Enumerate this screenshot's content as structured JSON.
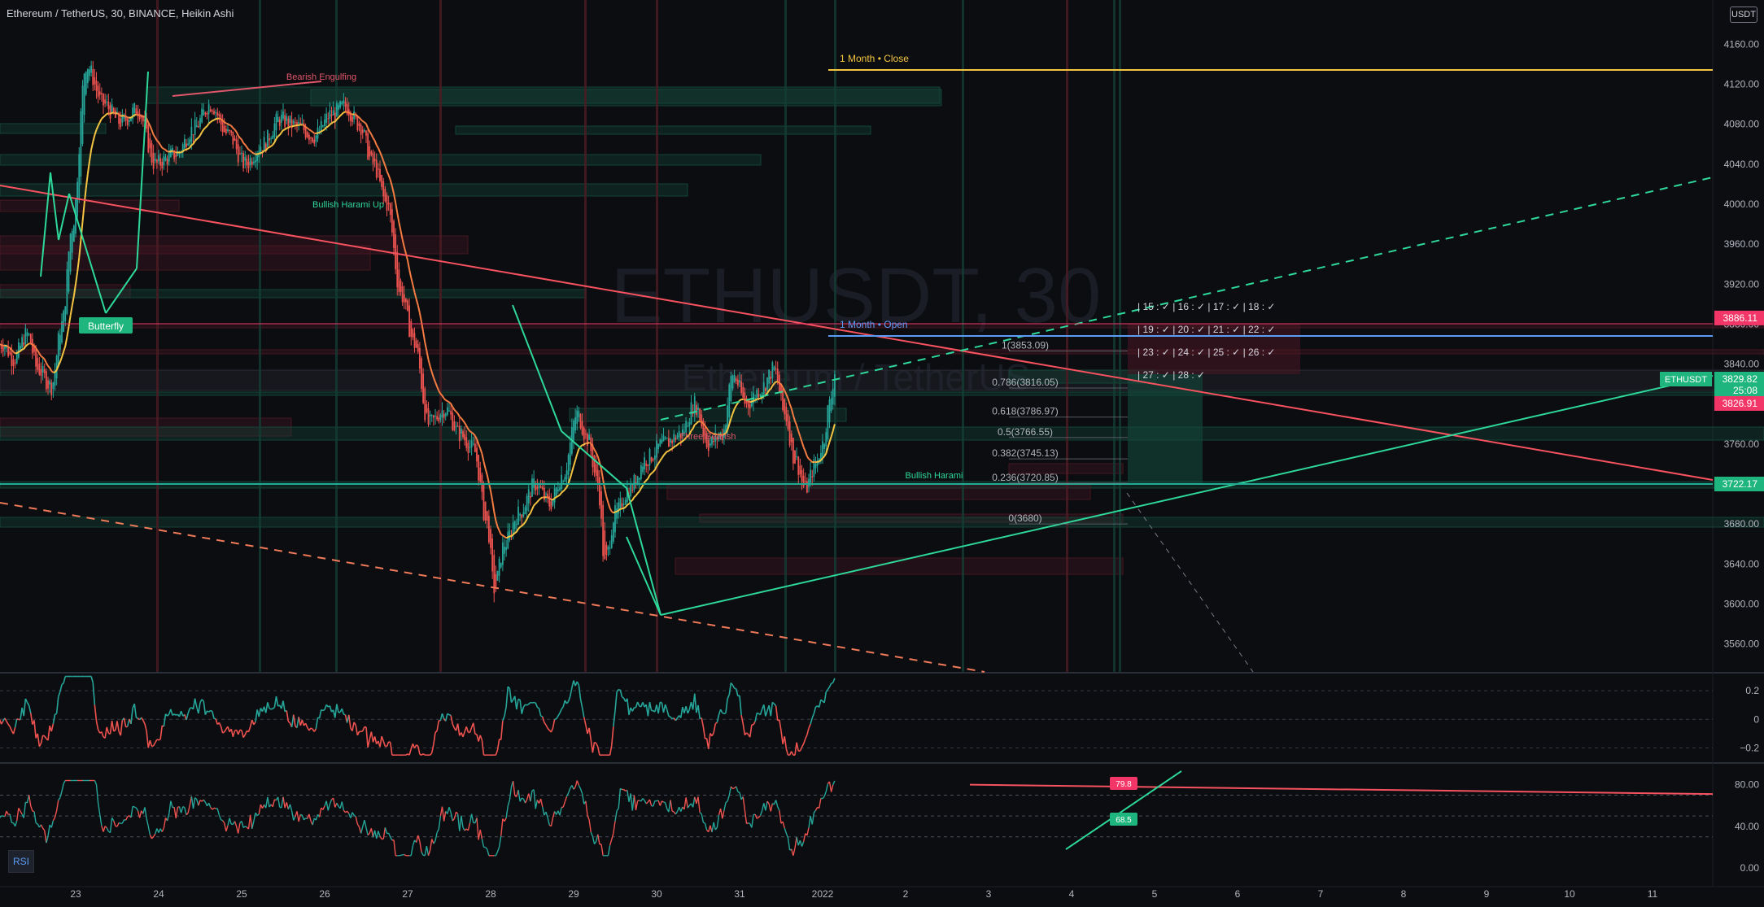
{
  "header": {
    "title": "Ethereum / TetherUS, 30, BINANCE, Heikin Ashi",
    "currency_badge": "USDT"
  },
  "watermark": {
    "symbol": "ETHUSDT, 30",
    "name": "Ethereum / TetherUS"
  },
  "annotations": {
    "month_close": "1 Month • Close",
    "month_open": "1 Month • Open",
    "butterfly": "Butterfly",
    "bearish_engulfing": "Bearish Engulfing",
    "bullish_harami_up": "Bullish Harami Up",
    "bullish_harami": "Bullish Harami",
    "three_white": "Three Bearish"
  },
  "fib_levels": [
    {
      "label": "1(3853.09)",
      "price": 3853.09
    },
    {
      "label": "0.786(3816.05)",
      "price": 3816.05
    },
    {
      "label": "0.618(3786.97)",
      "price": 3786.97
    },
    {
      "label": "0.5(3766.55)",
      "price": 3766.55
    },
    {
      "label": "0.382(3745.13)",
      "price": 3745.13
    },
    {
      "label": "0.236(3720.85)",
      "price": 3720.85
    },
    {
      "label": "0(3680)",
      "price": 3680
    }
  ],
  "grid_labels": {
    "row1": "| 15 : ✓ | 16 : ✓ | 17 : ✓ | 18 : ✓",
    "row2": "| 19 : ✓ | 20 : ✓ | 21 : ✓ | 22 : ✓",
    "row3": "| 23 : ✓ | 24 : ✓ | 25 : ✓ | 26 : ✓",
    "row4": "| 27 : ✓ | 28 : ✓"
  },
  "price_tags": {
    "high_tag": "3886.11",
    "current_price": "3829.82",
    "countdown": "25:08",
    "symbol_tag": "ETHUSDT",
    "pink_tag": "3826.91",
    "green_tag": "3722.17"
  },
  "rsi_badges": {
    "top": "79.8",
    "bottom": "68.5"
  },
  "buttons": {
    "rsi": "RSI"
  },
  "colors": {
    "background": "#0c0d10",
    "bull": "#26a69a",
    "bear": "#ef5350",
    "ma_yellow": "#f5c542",
    "trend_red": "#f7525f",
    "trend_green": "#2ed89a",
    "month_close": "#f5c542",
    "month_open": "#5b9cf6",
    "pink_tag": "#f23668",
    "green_tag": "#22ab94"
  },
  "chart_data": [
    {
      "type": "candlestick",
      "style": "Heikin Ashi",
      "interval": "30",
      "y_axis": {
        "ticks": [
          4160.0,
          4120.0,
          4080.0,
          4040.0,
          4000.0,
          3960.0,
          3920.0,
          3880.0,
          3840.0,
          3800.0,
          3760.0,
          3720.0,
          3680.0,
          3640.0,
          3600.0,
          3560.0
        ],
        "tick_labels": [
          "4160.00",
          "4120.00",
          "4080.00",
          "4040.00",
          "4000.00",
          "3960.00",
          "3920.00",
          "3880.00",
          "3840.00",
          "3800.00",
          "3760.00",
          "3720.00",
          "3680.00",
          "3640.00",
          "3600.00",
          "3560.00"
        ],
        "range": [
          3532,
          4188
        ]
      },
      "x_axis": {
        "labels": [
          "23",
          "24",
          "25",
          "26",
          "27",
          "28",
          "29",
          "30",
          "31",
          "2022",
          "2",
          "3",
          "4",
          "5",
          "6",
          "7",
          "8",
          "9",
          "10",
          "11"
        ],
        "label_index": [
          0,
          48,
          96,
          144,
          192,
          240,
          288,
          336,
          384,
          432,
          480,
          528,
          576,
          624,
          672,
          720,
          768,
          816,
          864,
          912
        ]
      },
      "anchors": [
        {
          "i": -42,
          "p": 3860
        },
        {
          "i": -36,
          "p": 3845
        },
        {
          "i": -28,
          "p": 3870
        },
        {
          "i": -22,
          "p": 3835
        },
        {
          "i": -14,
          "p": 3818
        },
        {
          "i": -8,
          "p": 3880
        },
        {
          "i": -2,
          "p": 3978
        },
        {
          "i": 6,
          "p": 4140
        },
        {
          "i": 16,
          "p": 4100
        },
        {
          "i": 26,
          "p": 4082
        },
        {
          "i": 36,
          "p": 4095
        },
        {
          "i": 46,
          "p": 4040
        },
        {
          "i": 58,
          "p": 4050
        },
        {
          "i": 68,
          "p": 4075
        },
        {
          "i": 78,
          "p": 4100
        },
        {
          "i": 88,
          "p": 4070
        },
        {
          "i": 98,
          "p": 4040
        },
        {
          "i": 108,
          "p": 4060
        },
        {
          "i": 118,
          "p": 4085
        },
        {
          "i": 128,
          "p": 4078
        },
        {
          "i": 138,
          "p": 4068
        },
        {
          "i": 148,
          "p": 4090
        },
        {
          "i": 156,
          "p": 4098
        },
        {
          "i": 164,
          "p": 4080
        },
        {
          "i": 172,
          "p": 4040
        },
        {
          "i": 180,
          "p": 4000
        },
        {
          "i": 188,
          "p": 3910
        },
        {
          "i": 196,
          "p": 3860
        },
        {
          "i": 204,
          "p": 3780
        },
        {
          "i": 214,
          "p": 3795
        },
        {
          "i": 222,
          "p": 3770
        },
        {
          "i": 230,
          "p": 3755
        },
        {
          "i": 238,
          "p": 3680
        },
        {
          "i": 242,
          "p": 3615
        },
        {
          "i": 248,
          "p": 3660
        },
        {
          "i": 256,
          "p": 3690
        },
        {
          "i": 266,
          "p": 3720
        },
        {
          "i": 274,
          "p": 3700
        },
        {
          "i": 282,
          "p": 3730
        },
        {
          "i": 290,
          "p": 3790
        },
        {
          "i": 296,
          "p": 3765
        },
        {
          "i": 302,
          "p": 3720
        },
        {
          "i": 306,
          "p": 3640
        },
        {
          "i": 312,
          "p": 3690
        },
        {
          "i": 320,
          "p": 3715
        },
        {
          "i": 330,
          "p": 3745
        },
        {
          "i": 340,
          "p": 3760
        },
        {
          "i": 350,
          "p": 3770
        },
        {
          "i": 358,
          "p": 3800
        },
        {
          "i": 366,
          "p": 3760
        },
        {
          "i": 374,
          "p": 3770
        },
        {
          "i": 380,
          "p": 3830
        },
        {
          "i": 388,
          "p": 3800
        },
        {
          "i": 396,
          "p": 3815
        },
        {
          "i": 404,
          "p": 3835
        },
        {
          "i": 410,
          "p": 3790
        },
        {
          "i": 416,
          "p": 3745
        },
        {
          "i": 422,
          "p": 3715
        },
        {
          "i": 428,
          "p": 3740
        },
        {
          "i": 432,
          "p": 3760
        },
        {
          "i": 436,
          "p": 3800
        },
        {
          "i": 439,
          "p": 3830
        }
      ],
      "last_price": 3829.82
    },
    {
      "type": "line",
      "pane": "oscillator",
      "ticks": [
        0.2,
        0,
        -0.2
      ],
      "tick_labels": [
        "0.2",
        "0",
        "−0.2"
      ],
      "range": [
        -0.3,
        0.32
      ]
    },
    {
      "type": "line",
      "pane": "RSI",
      "ticks": [
        80,
        40,
        0
      ],
      "tick_labels": [
        "80.00",
        "40.00",
        "0.00"
      ],
      "range": [
        -10,
        100
      ],
      "badges": [
        79.8,
        68.5
      ]
    }
  ]
}
